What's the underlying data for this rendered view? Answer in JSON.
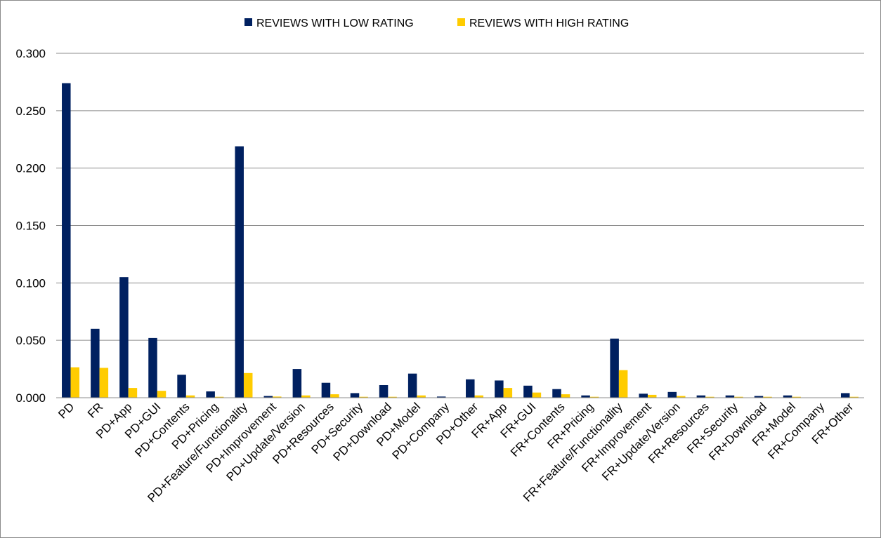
{
  "chart_data": {
    "type": "bar",
    "title": "",
    "xlabel": "",
    "ylabel": "",
    "ylim": [
      0,
      0.3
    ],
    "yticks": [
      "0.000",
      "0.050",
      "0.100",
      "0.150",
      "0.200",
      "0.250",
      "0.300"
    ],
    "grid": true,
    "legend_position": "top-center",
    "categories": [
      "PD",
      "FR",
      "PD+App",
      "PD+GUI",
      "PD+Contents",
      "PD+Pricing",
      "PD+Feature/Functionality",
      "PD+Improvement",
      "PD+Update/Version",
      "PD+Resources",
      "PD+Security",
      "PD+Download",
      "PD+Model",
      "PD+Company",
      "PD+Other",
      "FR+App",
      "FR+GUI",
      "FR+Contents",
      "FR+Pricing",
      "FR+Feature/Functionality",
      "FR+Improvement",
      "FR+Update/Version",
      "FR+Resources",
      "FR+Security",
      "FR+Download",
      "FR+Model",
      "FR+Company",
      "FR+Other"
    ],
    "series": [
      {
        "name": "REVIEWS WITH LOW RATING",
        "color": "#002060",
        "values": [
          0.274,
          0.06,
          0.105,
          0.052,
          0.02,
          0.0055,
          0.219,
          0.0015,
          0.025,
          0.013,
          0.004,
          0.011,
          0.021,
          0.001,
          0.016,
          0.015,
          0.0105,
          0.0075,
          0.002,
          0.0515,
          0.0035,
          0.005,
          0.002,
          0.002,
          0.0015,
          0.002,
          0,
          0.004
        ]
      },
      {
        "name": "REVIEWS WITH HIGH RATING",
        "color": "#FFCC00",
        "values": [
          0.0265,
          0.026,
          0.0085,
          0.006,
          0.002,
          0.0008,
          0.0215,
          0.001,
          0.002,
          0.003,
          0.0008,
          0.0008,
          0.002,
          0,
          0.002,
          0.0085,
          0.0045,
          0.003,
          0.0008,
          0.024,
          0.0025,
          0.0015,
          0.0008,
          0.0008,
          0.0008,
          0.0008,
          0,
          0.0008
        ]
      }
    ]
  }
}
